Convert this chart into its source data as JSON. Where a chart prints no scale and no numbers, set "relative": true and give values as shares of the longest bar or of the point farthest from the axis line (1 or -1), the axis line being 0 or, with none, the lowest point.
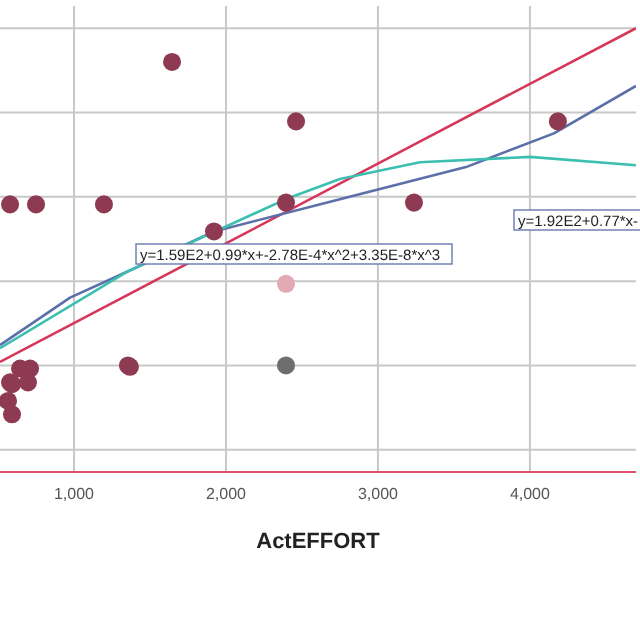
{
  "chart_data": {
    "type": "scatter",
    "relative": true,
    "xlabel": "ActEFFORT",
    "xlim": [
      513,
      4698
    ],
    "xticks": [
      {
        "value": 1000,
        "label": "1,000"
      },
      {
        "value": 2000,
        "label": "2,000"
      },
      {
        "value": 3000,
        "label": "3,000"
      },
      {
        "value": 4000,
        "label": "4,000"
      }
    ],
    "tick_labels": "x",
    "grid": true,
    "legend": false,
    "series": [
      {
        "color": "#8e3a52",
        "marker": "circle",
        "x": [
          579,
          750,
          1197,
          1645,
          1921,
          2395,
          2461,
          3237,
          4184,
          1355,
          1368,
          645,
          711,
          579,
          592,
          697,
          566,
          592
        ],
        "values": [
          0.603,
          0.603,
          0.603,
          0.924,
          0.542,
          0.607,
          0.79,
          0.607,
          0.79,
          0.24,
          0.237,
          0.233,
          0.233,
          0.202,
          0.198,
          0.202,
          0.16,
          0.13
        ]
      },
      {
        "type": "scatter",
        "color": "#6e6e6e",
        "marker": "circle",
        "x": [
          2395
        ],
        "values": [
          0.24
        ]
      },
      {
        "type": "scatter",
        "color": "#e3aab5",
        "marker": "circle",
        "x": [
          2395
        ],
        "values": [
          0.424
        ]
      },
      {
        "type": "line",
        "color": "#d6365a",
        "x": [
          513,
          4698
        ],
        "values": [
          0.248,
          1
        ]
      },
      {
        "type": "line",
        "color": "#5b6fa8",
        "x": [
          513,
          974,
          1342,
          1921,
          2711,
          3579,
          4158,
          4698
        ],
        "values": [
          0.286,
          0.393,
          0.45,
          0.542,
          0.611,
          0.687,
          0.763,
          0.87
        ]
      },
      {
        "type": "line",
        "color": "#3cbfb0",
        "x": [
          513,
          1342,
          2395,
          2750,
          3276,
          4000,
          4698
        ],
        "values": [
          0.279,
          0.45,
          0.615,
          0.66,
          0.698,
          0.71,
          0.691
        ]
      }
    ],
    "annotations": [
      "y=1.59E2+0.99*x+-2.78E-4*x^2+3.35E-8*x^3",
      "y=1.92E2+0.77*x-"
    ]
  }
}
